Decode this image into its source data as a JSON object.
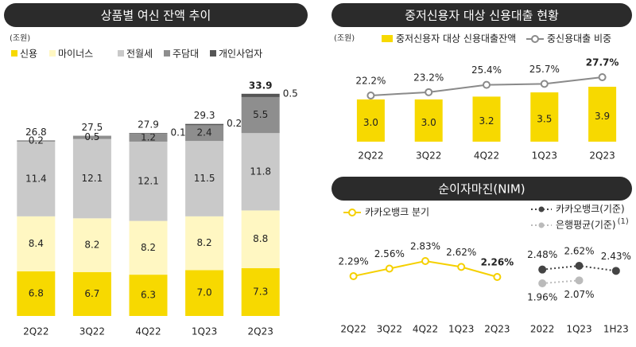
{
  "chart_data": [
    {
      "type": "bar",
      "stacked": true,
      "title": "상품별 여신 잔액 추이",
      "unit": "(조원)",
      "categories": [
        "2Q22",
        "3Q22",
        "4Q22",
        "1Q23",
        "2Q23"
      ],
      "ylim": [
        0,
        34
      ],
      "series": [
        {
          "name": "신용",
          "color": "#f7d900",
          "values": [
            6.8,
            6.7,
            6.3,
            7.0,
            7.3
          ],
          "value_labels": [
            "6.8",
            "6.7",
            "6.3",
            "7.0",
            "7.3"
          ]
        },
        {
          "name": "마이너스",
          "color": "#fff7c2",
          "values": [
            8.4,
            8.2,
            8.2,
            8.2,
            8.8
          ]
        },
        {
          "name": "전월세",
          "color": "#c9c9c9",
          "values": [
            11.4,
            12.1,
            12.1,
            11.5,
            11.8
          ]
        },
        {
          "name": "주담대",
          "color": "#8e8e8e",
          "values": [
            0.2,
            0.5,
            1.2,
            2.4,
            5.5
          ]
        },
        {
          "name": "개인사업자",
          "color": "#555555",
          "values": [
            null,
            null,
            0.1,
            0.2,
            0.5
          ]
        }
      ],
      "totals": [
        26.8,
        27.5,
        27.9,
        29.3,
        33.9
      ]
    },
    {
      "type": "bar",
      "title": "중저신용자 대상 신용대출 현황",
      "unit": "(조원)",
      "categories": [
        "2Q22",
        "3Q22",
        "4Q22",
        "1Q23",
        "2Q23"
      ],
      "ylim": [
        0,
        3.9
      ],
      "y2lim": [
        22.2,
        27.7
      ],
      "series": [
        {
          "name": "중저신용자 대상 신용대출잔액",
          "color": "#f7d900",
          "values": [
            3.0,
            3.0,
            3.2,
            3.5,
            3.9
          ],
          "value_labels": [
            "3.0",
            "3.0",
            "3.2",
            "3.5",
            "3.9"
          ]
        },
        {
          "name": "중신용대출 비중",
          "type": "line",
          "axis": "y2",
          "color": "#8a8a8a",
          "values": [
            22.2,
            23.2,
            25.4,
            25.7,
            27.7
          ],
          "value_labels": [
            "22.2%",
            "23.2%",
            "25.4%",
            "25.7%",
            "27.7%"
          ]
        }
      ]
    },
    {
      "type": "line",
      "title": "순이자마진(NIM)",
      "categories": [
        "2Q22",
        "3Q22",
        "4Q22",
        "1Q23",
        "2Q23"
      ],
      "ylim": [
        2.26,
        2.83
      ],
      "series": [
        {
          "name": "카카오뱅크 분기",
          "color": "#f5d000",
          "values": [
            2.29,
            2.56,
            2.83,
            2.62,
            2.26
          ],
          "value_labels": [
            "2.29%",
            "2.56%",
            "2.83%",
            "2.62%",
            "2.26%"
          ]
        }
      ]
    },
    {
      "type": "line",
      "categories": [
        "2022",
        "1Q23",
        "1H23"
      ],
      "ylim": [
        1.96,
        2.62
      ],
      "series": [
        {
          "name": "카카오뱅크(기준)",
          "color": "#444444",
          "values": [
            2.48,
            2.62,
            2.43
          ],
          "value_labels": [
            "2.48%",
            "2.62%",
            "2.43%"
          ]
        },
        {
          "name": "은행평균(기준)",
          "footnote_mark": "(1)",
          "color": "#bbbbbb",
          "values": [
            1.96,
            2.07,
            null
          ],
          "value_labels": [
            "1.96%",
            "2.07%",
            null
          ]
        }
      ]
    }
  ]
}
